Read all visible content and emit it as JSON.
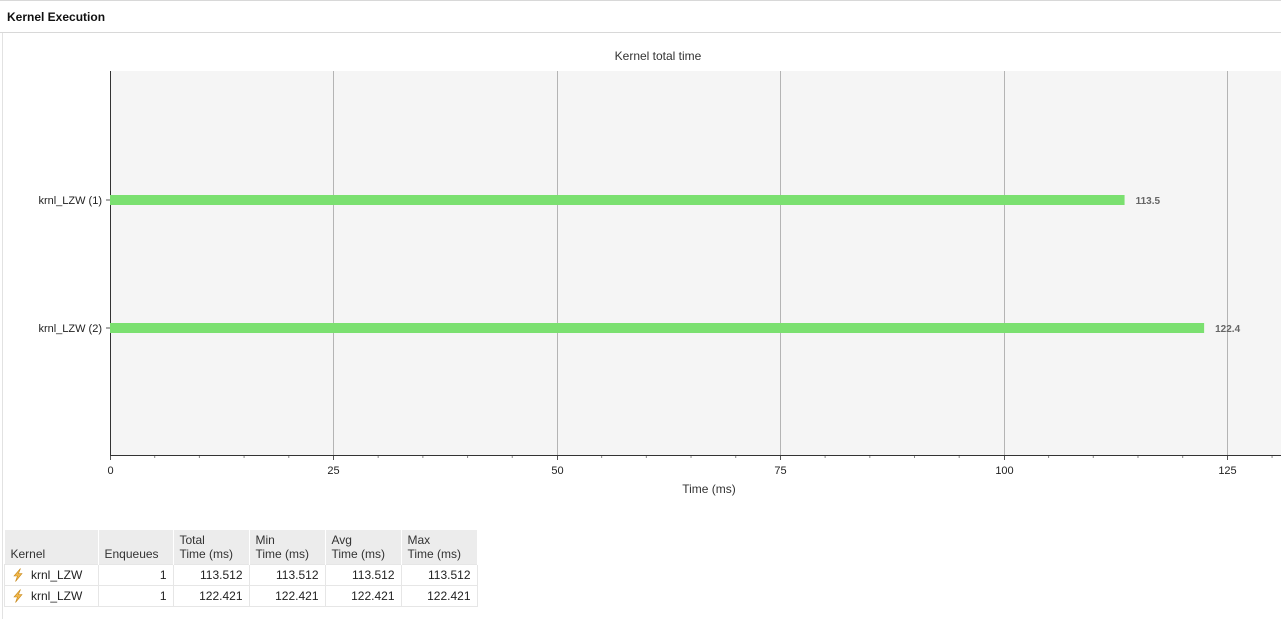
{
  "panel": {
    "title": "Kernel Execution"
  },
  "chart_data": {
    "type": "bar",
    "orientation": "horizontal",
    "title": "Kernel total time",
    "xlabel": "Time (ms)",
    "ylabel": "",
    "categories": [
      "krnl_LZW (1)",
      "krnl_LZW (2)"
    ],
    "values": [
      113.5,
      122.4
    ],
    "data_labels": [
      "113.5",
      "122.4"
    ],
    "xlim": [
      0,
      131
    ],
    "xticks": [
      0,
      25,
      50,
      75,
      100,
      125
    ],
    "grid": true,
    "legend": "none",
    "bar_color": "#7be070",
    "plot_bg": "#f5f5f5"
  },
  "table": {
    "headers": [
      {
        "line1": "Kernel",
        "line2": ""
      },
      {
        "line1": "Enqueues",
        "line2": ""
      },
      {
        "line1": "Total",
        "line2": "Time (ms)"
      },
      {
        "line1": "Min",
        "line2": "Time (ms)"
      },
      {
        "line1": "Avg",
        "line2": "Time (ms)"
      },
      {
        "line1": "Max",
        "line2": "Time (ms)"
      }
    ],
    "rows": [
      {
        "icon": "kernel-bolt-icon",
        "kernel": "krnl_LZW",
        "enqueues": "1",
        "total": "113.512",
        "min": "113.512",
        "avg": "113.512",
        "max": "113.512"
      },
      {
        "icon": "kernel-bolt-icon",
        "kernel": "krnl_LZW",
        "enqueues": "1",
        "total": "122.421",
        "min": "122.421",
        "avg": "122.421",
        "max": "122.421"
      }
    ]
  }
}
